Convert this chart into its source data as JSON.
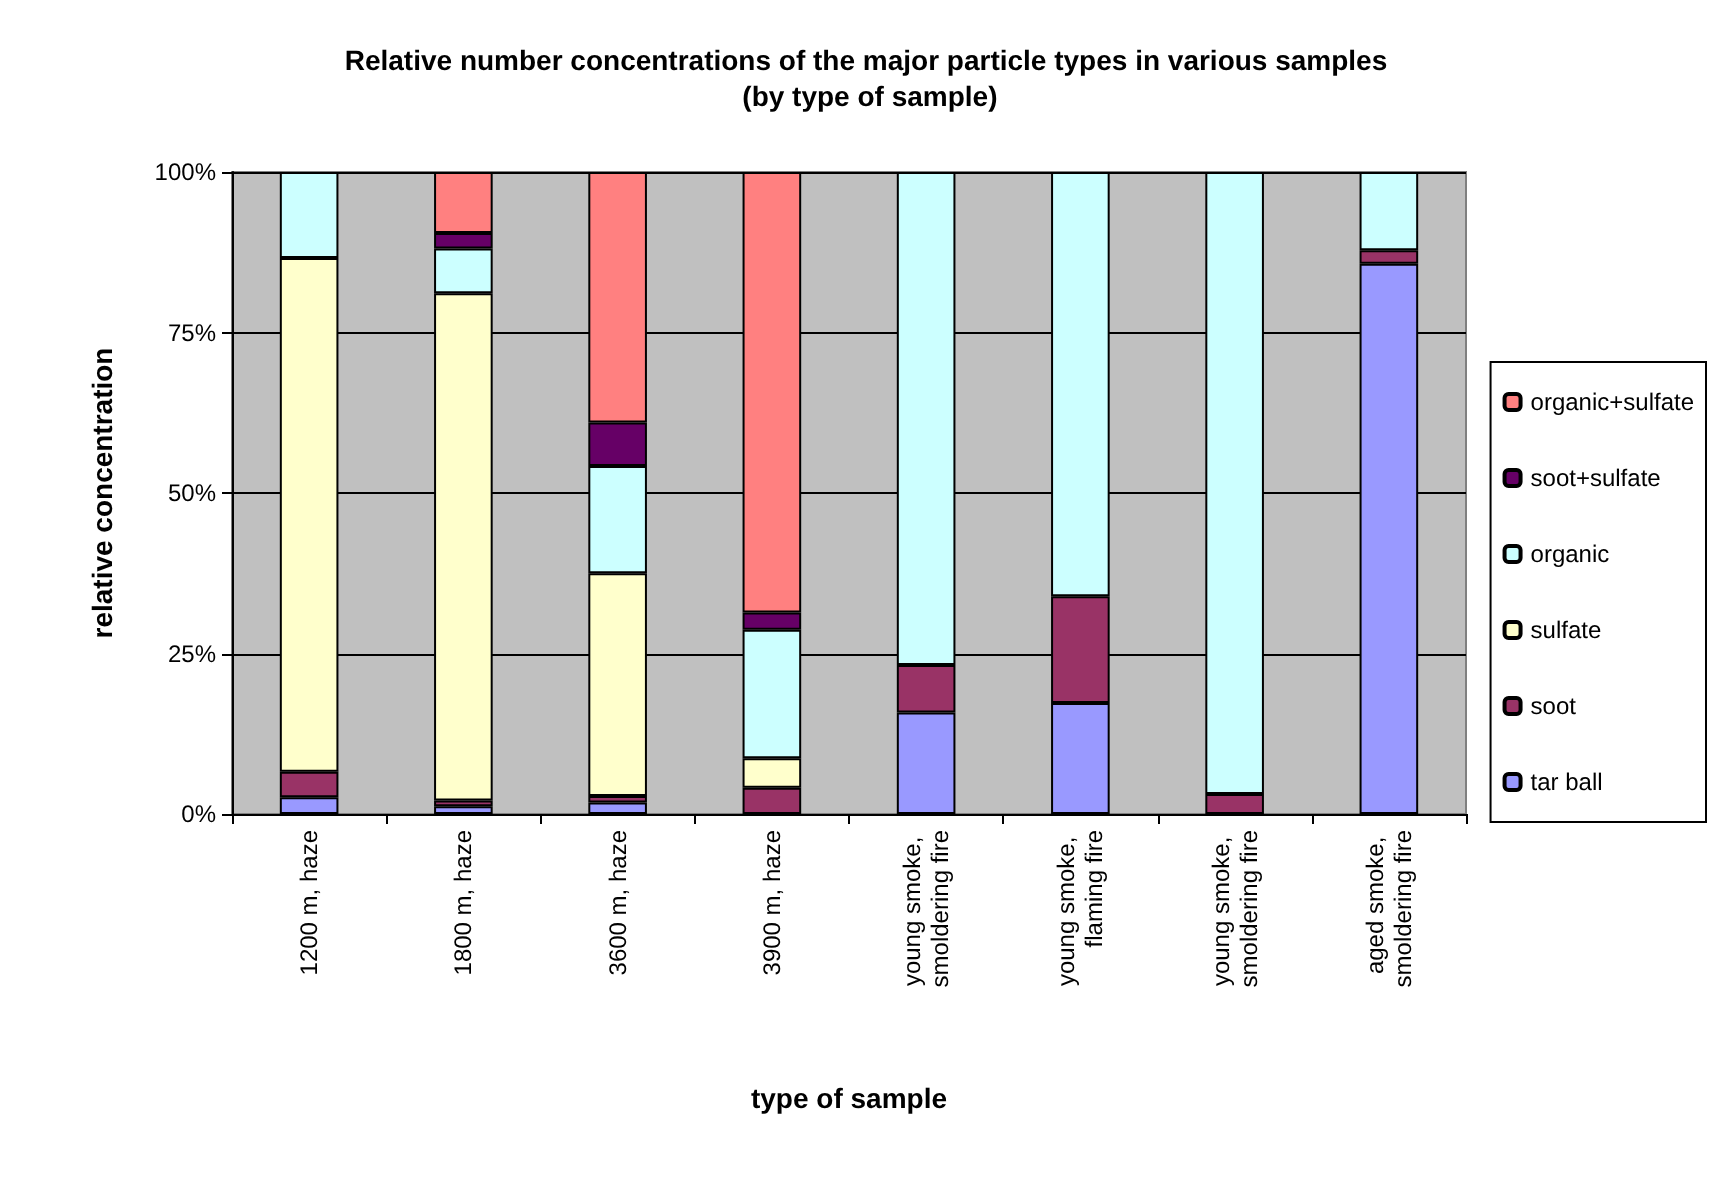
{
  "chart_data": {
    "type": "bar",
    "stacked": true,
    "title": "Relative number concentrations of the major particle types in various samples (by type of sample)",
    "xlabel": "type of sample",
    "ylabel": "relative concentration",
    "categories": [
      "1200 m, haze",
      "1800 m, haze",
      "3600 m, haze",
      "3900 m, haze",
      "young smoke, smoldering fire",
      "young smoke, flaming fire",
      "young smoke, smoldering fire",
      "aged smoke, smoldering fire"
    ],
    "series": [
      {
        "name": "tar ball",
        "color": "#9999ff",
        "values": [
          2.6,
          1.2,
          1.8,
          0,
          15.8,
          17.3,
          0,
          85.7
        ]
      },
      {
        "name": "soot",
        "color": "#993366",
        "values": [
          4,
          0.9,
          1,
          4.1,
          7.4,
          16.6,
          3.1,
          2.1
        ]
      },
      {
        "name": "sulfate",
        "color": "#ffffcc",
        "values": [
          80,
          79,
          34.7,
          4.6,
          0,
          0,
          0,
          0
        ]
      },
      {
        "name": "organic",
        "color": "#ccffff",
        "values": [
          13.4,
          7,
          16.7,
          20,
          76.8,
          66.1,
          96.9,
          12.2
        ]
      },
      {
        "name": "soot+sulfate",
        "color": "#660066",
        "values": [
          0,
          2.4,
          6.8,
          2.7,
          0,
          0,
          0,
          0
        ]
      },
      {
        "name": "organic+sulfate",
        "color": "#ff8080",
        "values": [
          0,
          9.5,
          39,
          68.6,
          0,
          0,
          0,
          0
        ]
      }
    ],
    "ylim": [
      0,
      100
    ],
    "yticks": [
      {
        "value": 0,
        "label": "0%"
      },
      {
        "value": 25,
        "label": "25%"
      },
      {
        "value": 50,
        "label": "50%"
      },
      {
        "value": 75,
        "label": "75%"
      },
      {
        "value": 100,
        "label": "100%"
      }
    ],
    "grid": "y",
    "legend": "right"
  }
}
